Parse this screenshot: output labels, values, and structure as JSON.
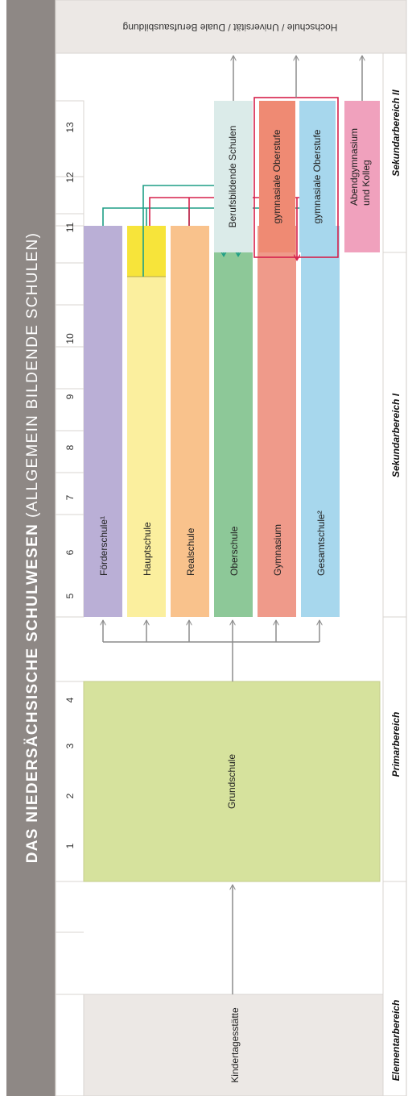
{
  "title": {
    "bold": "DAS NIEDERSÄCHSISCHE SCHULWESEN",
    "normal": "(ALLGEMEIN BILDENDE SCHULEN)"
  },
  "top_destination": "Hochschule / Universität / Duale Berufsausbildung",
  "stages": {
    "elementary": "Elementarbereich",
    "primary": "Primarbereich",
    "secondary_1": "Sekundarbereich I",
    "secondary_2": "Sekundarbereich II"
  },
  "grades": [
    "1",
    "2",
    "3",
    "4",
    "5",
    "6",
    "7",
    "8",
    "9",
    "10",
    "11",
    "12",
    "13"
  ],
  "schools": {
    "kita": "Kindertagesstätte",
    "grundschule": "Grundschule",
    "foerderschule": "Förderschule¹",
    "hauptschule": "Hauptschule",
    "realschule": "Realschule",
    "oberschule": "Oberschule",
    "gymnasium": "Gymnasium",
    "gesamtschule": "Gesamtschule²",
    "berufsbildende": "Berufsbildende Schulen",
    "oberstufe_1": "gymnasiale Oberstufe",
    "oberstufe_2": "gymnasiale Oberstufe",
    "abend_line1": "Abendgymnasium",
    "abend_line2": "und Kolleg"
  },
  "colors": {
    "title_band": "#8e8885",
    "frame": "#d9d4d1",
    "kita": "#ece8e5",
    "grundschule": "#d6e29d",
    "foerderschule": "#baafd6",
    "hauptschule": "#fbef9e",
    "hauptschule_10": "#f7e43a",
    "realschule": "#f9c28c",
    "oberschule": "#8dc898",
    "gymnasium": "#ef9a8a",
    "gesamtschule": "#a7d7ed",
    "berufsbildende": "#dbebe9",
    "oberstufe_1": "#ef8a73",
    "oberstufe_2": "#a7d7ed",
    "abend": "#f0a1bd",
    "arrow_gray": "#8c8c8c",
    "arrow_green": "#1e9e86",
    "arrow_red": "#d6204b"
  }
}
